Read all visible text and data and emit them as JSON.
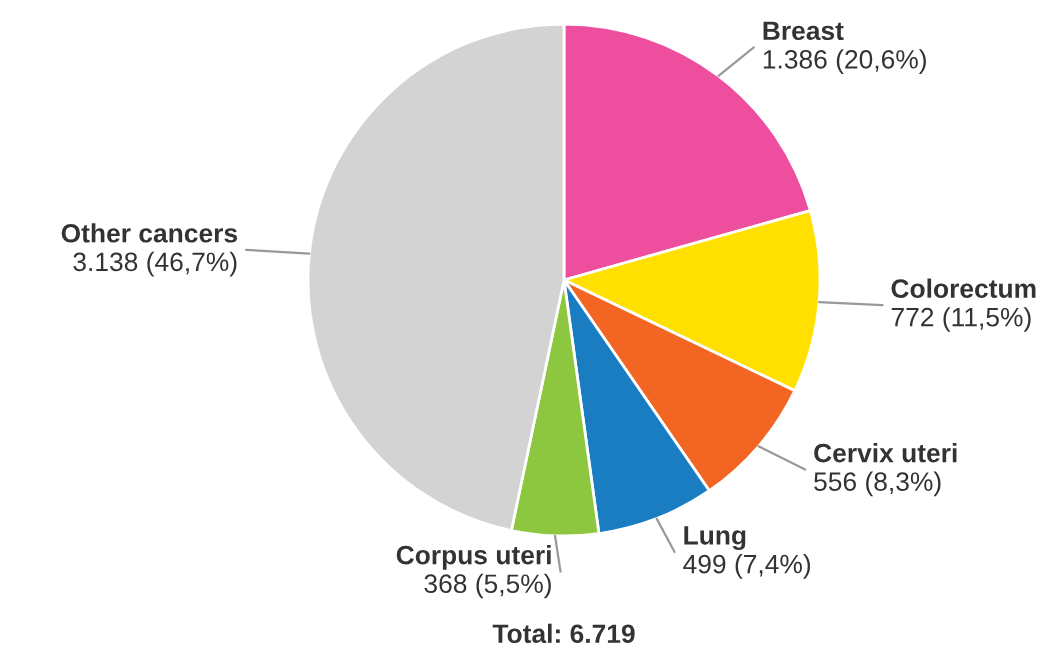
{
  "chart_data": {
    "type": "pie",
    "categories": [
      "Breast",
      "Colorectum",
      "Cervix uteri",
      "Lung",
      "Corpus uteri",
      "Other cancers"
    ],
    "values": [
      1386,
      772,
      556,
      499,
      368,
      3138
    ],
    "value_labels": [
      "1.386 (20,6%)",
      "772 (11,5%)",
      "556 (8,3%)",
      "499 (7,4%)",
      "368 (5,5%)",
      "3.138 (46,7%)"
    ],
    "colors": [
      "#ee4e9e",
      "#ffe000",
      "#f26522",
      "#1a7cc1",
      "#8dc63f",
      "#d3d3d3"
    ],
    "annotations": [
      "Total: 6.719"
    ]
  }
}
